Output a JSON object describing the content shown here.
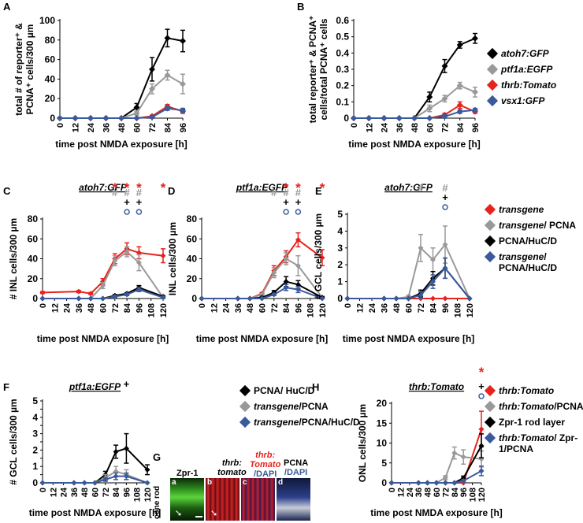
{
  "chart_data": [
    {
      "type": "line",
      "panel": "A",
      "xlabel": "time post NMDA exposure [h]",
      "ylabel_lines": [
        "total # of reporter⁺ &",
        "PCNA⁺ cells/300 µm"
      ],
      "x": [
        0,
        12,
        24,
        36,
        48,
        60,
        72,
        84,
        96
      ],
      "ylim": [
        0,
        100
      ],
      "yticks": [
        0,
        20,
        40,
        60,
        80,
        100
      ],
      "series": [
        {
          "name": "atoh7:GFP",
          "color": "#000000",
          "values": [
            0,
            0,
            0,
            0,
            0,
            11,
            50,
            82,
            79
          ],
          "err": [
            0,
            0,
            0,
            0,
            0,
            4,
            12,
            9,
            11
          ]
        },
        {
          "name": "ptf1a:EGFP",
          "color": "#999999",
          "values": [
            0,
            0,
            0,
            0,
            0,
            5,
            30,
            44,
            35
          ],
          "err": [
            0,
            0,
            0,
            0,
            0,
            2,
            5,
            5,
            10
          ]
        },
        {
          "name": "thrb:Tomato",
          "color": "#e8221c",
          "values": [
            0,
            0,
            0,
            0,
            0,
            0,
            2,
            12,
            7
          ],
          "err": [
            0,
            0,
            0,
            0,
            0,
            0,
            1,
            2,
            2
          ]
        },
        {
          "name": "vsx1:GFP",
          "color": "#3a5a9c",
          "values": [
            0,
            0,
            0,
            0,
            0,
            0,
            1,
            10,
            8
          ],
          "err": [
            0,
            0,
            0,
            0,
            0,
            0,
            1,
            2,
            2
          ]
        }
      ]
    },
    {
      "type": "line",
      "panel": "B",
      "xlabel": "time post NMDA exposure [h]",
      "ylabel_lines": [
        "total reporter⁺ & PCNA⁺",
        "cells/total PCNA⁺ cells"
      ],
      "x": [
        0,
        12,
        24,
        36,
        48,
        60,
        72,
        84,
        96
      ],
      "ylim": [
        0,
        0.6
      ],
      "yticks": [
        0,
        0.1,
        0.2,
        0.3,
        0.4,
        0.5,
        0.6
      ],
      "series": [
        {
          "name": "atoh7:GFP",
          "color": "#000000",
          "values": [
            0,
            0,
            0,
            0,
            0,
            0.13,
            0.32,
            0.45,
            0.49
          ],
          "err": [
            0,
            0,
            0,
            0,
            0,
            0.03,
            0.04,
            0.02,
            0.03
          ]
        },
        {
          "name": "ptf1a:EGFP",
          "color": "#999999",
          "values": [
            0,
            0,
            0,
            0,
            0,
            0.06,
            0.12,
            0.2,
            0.16
          ],
          "err": [
            0,
            0,
            0,
            0,
            0,
            0.02,
            0.02,
            0.02,
            0.03
          ]
        },
        {
          "name": "thrb:Tomato",
          "color": "#e8221c",
          "values": [
            0,
            0,
            0,
            0,
            0,
            0,
            0.02,
            0.08,
            0.04
          ],
          "err": [
            0,
            0,
            0,
            0,
            0,
            0,
            0.01,
            0.02,
            0.01
          ]
        },
        {
          "name": "vsx1:GFP",
          "color": "#3a5a9c",
          "values": [
            0,
            0,
            0,
            0,
            0,
            0,
            0.01,
            0.04,
            0.05
          ],
          "err": [
            0,
            0,
            0,
            0,
            0,
            0,
            0.01,
            0.01,
            0.01
          ]
        }
      ]
    },
    {
      "type": "line",
      "panel": "C",
      "title": "atoh7:GFP",
      "xlabel": "time post NMDA exposure [h]",
      "ylabel": "# INL cells/300 µm",
      "x": [
        0,
        36,
        48,
        60,
        72,
        84,
        96,
        120
      ],
      "xticks": [
        0,
        12,
        24,
        36,
        48,
        60,
        72,
        84,
        96,
        108,
        120
      ],
      "ylim": [
        0,
        80
      ],
      "yticks": [
        0,
        20,
        40,
        60,
        80
      ],
      "series": [
        {
          "name": "transgene",
          "color": "#e8221c",
          "values": [
            6,
            7,
            5,
            17,
            40,
            50,
            46,
            43
          ],
          "err": [
            1,
            1,
            1,
            3,
            5,
            6,
            6,
            7
          ]
        },
        {
          "name": "transgene/PCNA",
          "color": "#999999",
          "values": [
            0,
            0,
            0,
            13,
            38,
            47,
            36,
            1
          ],
          "err": [
            0,
            0,
            0,
            3,
            5,
            5,
            8,
            1
          ]
        },
        {
          "name": "PCNA/HuC/D",
          "color": "#000000",
          "values": [
            0,
            0,
            0,
            0,
            3,
            5,
            11,
            2
          ],
          "err": [
            0,
            0,
            0,
            0,
            1,
            1,
            2,
            1
          ]
        },
        {
          "name": "transgene/PCNA/HuC/D",
          "color": "#3a5a9c",
          "values": [
            0,
            0,
            0,
            0,
            2,
            4,
            9,
            1
          ],
          "err": [
            0,
            0,
            0,
            0,
            1,
            1,
            2,
            1
          ]
        }
      ],
      "annotations": [
        {
          "x": 72,
          "rows": [
            "*",
            "#",
            "",
            ""
          ]
        },
        {
          "x": 84,
          "rows": [
            "*",
            "#",
            "+",
            "o"
          ]
        },
        {
          "x": 96,
          "rows": [
            "*",
            "#",
            "+",
            "o"
          ]
        },
        {
          "x": 120,
          "rows": [
            "*",
            "",
            "",
            ""
          ]
        }
      ]
    },
    {
      "type": "line",
      "panel": "D",
      "title": "ptf1a:EGFP",
      "xlabel": "time post NMDA exposure [h]",
      "ylabel": "INL cells/300 µm",
      "x": [
        0,
        36,
        48,
        60,
        72,
        84,
        96,
        120
      ],
      "xticks": [
        0,
        12,
        24,
        36,
        48,
        60,
        72,
        84,
        96,
        108,
        120
      ],
      "ylim": [
        0,
        80
      ],
      "yticks": [
        0,
        20,
        40,
        60,
        80
      ],
      "series": [
        {
          "name": "transgene",
          "color": "#e8221c",
          "values": [
            0,
            0,
            0,
            5,
            28,
            42,
            59,
            41
          ],
          "err": [
            0,
            0,
            0,
            1,
            5,
            6,
            7,
            8
          ]
        },
        {
          "name": "transgene/PCNA",
          "color": "#999999",
          "values": [
            0,
            0,
            0,
            4,
            26,
            40,
            33,
            1
          ],
          "err": [
            0,
            0,
            0,
            1,
            5,
            6,
            10,
            1
          ]
        },
        {
          "name": "PCNA/HuC/D",
          "color": "#000000",
          "values": [
            0,
            0,
            0,
            1,
            6,
            17,
            14,
            1
          ],
          "err": [
            0,
            0,
            0,
            1,
            2,
            5,
            4,
            1
          ]
        },
        {
          "name": "transgene/PCNA/HuC/D",
          "color": "#3a5a9c",
          "values": [
            0,
            0,
            0,
            0,
            4,
            11,
            9,
            0
          ],
          "err": [
            0,
            0,
            0,
            0,
            1,
            3,
            3,
            0
          ]
        }
      ],
      "annotations": [
        {
          "x": 72,
          "rows": [
            "",
            "#",
            "",
            ""
          ]
        },
        {
          "x": 84,
          "rows": [
            "*",
            "#",
            "+",
            "o"
          ]
        },
        {
          "x": 96,
          "rows": [
            "*",
            "#",
            "+",
            "o"
          ]
        },
        {
          "x": 120,
          "rows": [
            "*",
            "",
            "",
            ""
          ]
        }
      ]
    },
    {
      "type": "line",
      "panel": "E",
      "title": "atoh7:GFP",
      "xlabel": "time post NMDA exposure [h]",
      "ylabel": "# GCL cells/300 µm",
      "x": [
        0,
        36,
        48,
        60,
        72,
        84,
        96,
        120
      ],
      "xticks": [
        0,
        12,
        24,
        36,
        48,
        60,
        72,
        84,
        96,
        108,
        120
      ],
      "ylim": [
        0,
        5
      ],
      "yticks": [
        0,
        1,
        2,
        3,
        4,
        5
      ],
      "series": [
        {
          "name": "transgene",
          "color": "#e8221c",
          "values": [
            0,
            0,
            0,
            0,
            0,
            0,
            0,
            0
          ],
          "err": [
            0,
            0,
            0,
            0,
            0,
            0,
            0,
            0
          ]
        },
        {
          "name": "transgene/PCNA",
          "color": "#999999",
          "values": [
            0,
            0,
            0,
            0.1,
            3.0,
            2.3,
            3.2,
            0
          ],
          "err": [
            0,
            0,
            0,
            0.1,
            0.8,
            0.7,
            1.1,
            0
          ]
        },
        {
          "name": "PCNA/HuC/D",
          "color": "#000000",
          "values": [
            0,
            0,
            0,
            0,
            0.3,
            1.2,
            1.8,
            0
          ],
          "err": [
            0,
            0,
            0,
            0,
            0.2,
            0.4,
            0.6,
            0
          ]
        },
        {
          "name": "transgene/PCNA/HuC/D",
          "color": "#3a5a9c",
          "values": [
            0,
            0,
            0,
            0,
            0.2,
            1.0,
            1.8,
            0
          ],
          "err": [
            0,
            0,
            0,
            0,
            0.2,
            0.4,
            0.6,
            0
          ]
        }
      ],
      "annotations": [
        {
          "x": 72,
          "rows": [
            "",
            "#",
            "",
            ""
          ]
        },
        {
          "x": 96,
          "rows": [
            "",
            "#",
            "+",
            "o"
          ]
        }
      ]
    },
    {
      "type": "line",
      "panel": "F",
      "title": "ptf1a:EGFP",
      "xlabel": "time post NMDA exposure [h]",
      "ylabel": "# GCL cells/300 µm",
      "x": [
        0,
        36,
        48,
        60,
        72,
        84,
        96,
        120
      ],
      "xticks": [
        0,
        12,
        24,
        36,
        48,
        60,
        72,
        84,
        96,
        108,
        120
      ],
      "ylim": [
        0,
        5
      ],
      "yticks": [
        0,
        0.5,
        1,
        1.5,
        2,
        2.5,
        3,
        3.5,
        4,
        4.5,
        5
      ],
      "ytick_labels": [
        "0",
        "",
        "1",
        "",
        "2",
        "",
        "3",
        "",
        "4",
        "",
        "5"
      ],
      "series": [
        {
          "name": "PCNA/ HuC/D",
          "color": "#000000",
          "values": [
            0,
            0,
            0,
            0,
            0.5,
            1.9,
            2.1,
            0.8
          ],
          "err": [
            0,
            0,
            0,
            0,
            0.2,
            0.4,
            0.9,
            0.3
          ]
        },
        {
          "name": "transgene/PCNA",
          "color": "#999999",
          "values": [
            0,
            0,
            0,
            0,
            0.3,
            0.7,
            0.5,
            0
          ],
          "err": [
            0,
            0,
            0,
            0,
            0.2,
            0.3,
            0.3,
            0
          ]
        },
        {
          "name": "transgene/PCNA/HuC/D",
          "color": "#3a5a9c",
          "values": [
            0,
            0,
            0,
            0,
            0.2,
            0.4,
            0.4,
            0
          ],
          "err": [
            0,
            0,
            0,
            0,
            0.1,
            0.2,
            0.2,
            0
          ]
        }
      ],
      "annotations": [
        {
          "x": 96,
          "rows": [
            "",
            "",
            "+",
            ""
          ]
        }
      ]
    },
    {
      "type": "line",
      "panel": "H",
      "title": "thrb:Tomato",
      "xlabel": "time post NMDA exposure [h]",
      "ylabel": "ONL cells/300 µm",
      "x": [
        0,
        36,
        48,
        60,
        72,
        84,
        96,
        120
      ],
      "xticks": [
        0,
        12,
        24,
        36,
        48,
        60,
        72,
        84,
        96,
        108,
        120
      ],
      "ylim": [
        0,
        20
      ],
      "yticks": [
        0,
        5,
        10,
        15,
        20
      ],
      "series": [
        {
          "name": "thrb:Tomato",
          "color": "#e8221c",
          "values": [
            0,
            0,
            0,
            0,
            0,
            0,
            0,
            13.5
          ],
          "err": [
            0,
            0,
            0,
            0,
            0,
            0,
            0,
            4.5
          ]
        },
        {
          "name": "thrb:Tomato/PCNA",
          "color": "#999999",
          "values": [
            0,
            0,
            0,
            0,
            1.3,
            7.5,
            6.5,
            6.0
          ],
          "err": [
            0,
            0,
            0,
            0,
            0.5,
            1.5,
            1.8,
            2.0
          ]
        },
        {
          "name": "Zpr-1 rod layer",
          "color": "#000000",
          "values": [
            0,
            0,
            0,
            0,
            0,
            0,
            1.2,
            9.3
          ],
          "err": [
            0,
            0,
            0,
            0,
            0,
            0,
            0.5,
            3.0
          ]
        },
        {
          "name": "thrb:Tomato/Zpr-1/PCNA",
          "color": "#3a5a9c",
          "values": [
            0,
            0,
            0,
            0,
            0,
            0,
            0.5,
            3.0
          ],
          "err": [
            0,
            0,
            0,
            0,
            0,
            0,
            0.3,
            1.2
          ]
        }
      ],
      "annotations": [
        {
          "x": 120,
          "rows": [
            "*",
            "",
            "+",
            "o"
          ]
        }
      ]
    }
  ],
  "panel_letters": {
    "A": "A",
    "B": "B",
    "C": "C",
    "D": "D",
    "E": "E",
    "F": "F",
    "G": "G",
    "H": "H"
  },
  "legend_AB": [
    {
      "label": "atoh7:GFP",
      "color": "#000000"
    },
    {
      "label": "ptf1a:EGFP",
      "color": "#999999"
    },
    {
      "label": "thrb:Tomato",
      "color": "#e8221c"
    },
    {
      "label": "vsx1:GFP",
      "color": "#3a5a9c"
    }
  ],
  "legend_CDE": [
    {
      "label": "transgene",
      "color": "#e8221c",
      "italic": true
    },
    {
      "label_italic": "transgene",
      "label_rest": "/ PCNA",
      "color": "#999999"
    },
    {
      "label": "PCNA/HuC/D",
      "color": "#000000",
      "italic": false
    },
    {
      "label_italic": "transgene",
      "label_rest": "/ PCNA/HuC/D",
      "color": "#3a5a9c"
    }
  ],
  "legend_F": [
    {
      "label": "PCNA/ HuC/D",
      "color": "#000000"
    },
    {
      "label_italic": "transgene",
      "label_rest": "/PCNA",
      "color": "#999999"
    },
    {
      "label_italic": "transgene",
      "label_rest": "/PCNA/HuC/D",
      "color": "#3a5a9c"
    }
  ],
  "legend_H": [
    {
      "label_italic": "thrb:Tomato",
      "label_rest": "",
      "color": "#e8221c"
    },
    {
      "label_italic": "thrb:Tomato",
      "label_rest": "/PCNA",
      "color": "#999999"
    },
    {
      "label_italic": "",
      "label_rest": "Zpr-1 rod layer",
      "color": "#000000"
    },
    {
      "label_italic": "thrb:Tomato",
      "label_rest": "/ Zpr-1/PCNA",
      "color": "#3a5a9c"
    }
  ],
  "panel_G": {
    "letter": "G",
    "side_labels": [
      "rod",
      "cone"
    ],
    "subpanels": [
      {
        "id": "a",
        "header": "Zpr-1",
        "bg": "#3aa11f"
      },
      {
        "id": "b",
        "header_italic": "thrb:",
        "header_italic2": "tomato",
        "bg": "#b0161a"
      },
      {
        "id": "c",
        "header_red": "thrb:",
        "header_red2": "Tomato",
        "header_blue": "/DAPI",
        "bg": "#8e1c2e"
      },
      {
        "id": "d",
        "header": "PCNA",
        "header_blue": "/DAPI",
        "bg": "#202a5a"
      }
    ]
  }
}
